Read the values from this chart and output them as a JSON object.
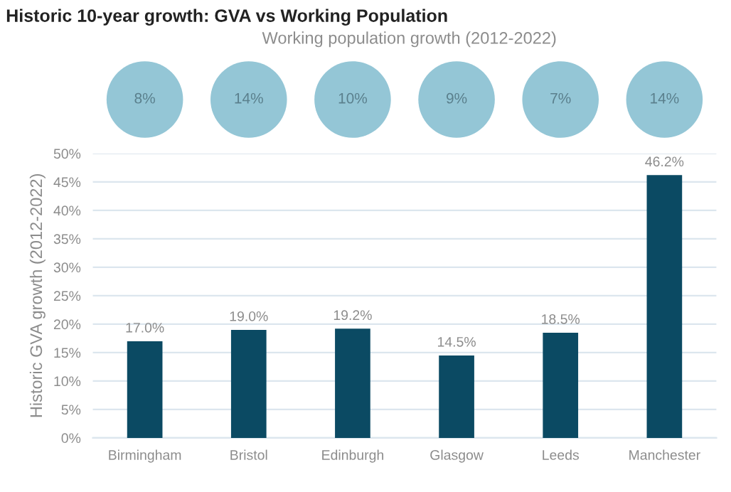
{
  "chart_data": {
    "type": "bar",
    "title": "Historic 10-year growth: GVA vs Working Population",
    "subtitle": "Working population growth (2012-2022)",
    "ylabel": "Historic GVA growth (2012-2022)",
    "annotations": [
      "8%",
      "14%",
      "10%",
      "9%",
      "7%",
      "14%"
    ],
    "categories": [
      "Birmingham",
      "Bristol",
      "Edinburgh",
      "Glasgow",
      "Leeds",
      "Manchester"
    ],
    "values": [
      17.0,
      19.0,
      19.2,
      14.5,
      18.5,
      46.2
    ],
    "value_labels": [
      "17.0%",
      "19.0%",
      "19.2%",
      "14.5%",
      "18.5%",
      "46.2%"
    ],
    "color": "#0b4a63",
    "ylim": [
      0,
      50
    ],
    "yticks": [
      {
        "value": 0,
        "label": "0%"
      },
      {
        "value": 5,
        "label": "5%"
      },
      {
        "value": 10,
        "label": "10%"
      },
      {
        "value": 15,
        "label": "15%"
      },
      {
        "value": 20,
        "label": "20%"
      },
      {
        "value": 25,
        "label": "25%"
      },
      {
        "value": 30,
        "label": "30%"
      },
      {
        "value": 35,
        "label": "35%"
      },
      {
        "value": 40,
        "label": "40%"
      },
      {
        "value": 45,
        "label": "45%"
      },
      {
        "value": 50,
        "label": "50%"
      }
    ],
    "grid": "y",
    "legend": false
  }
}
